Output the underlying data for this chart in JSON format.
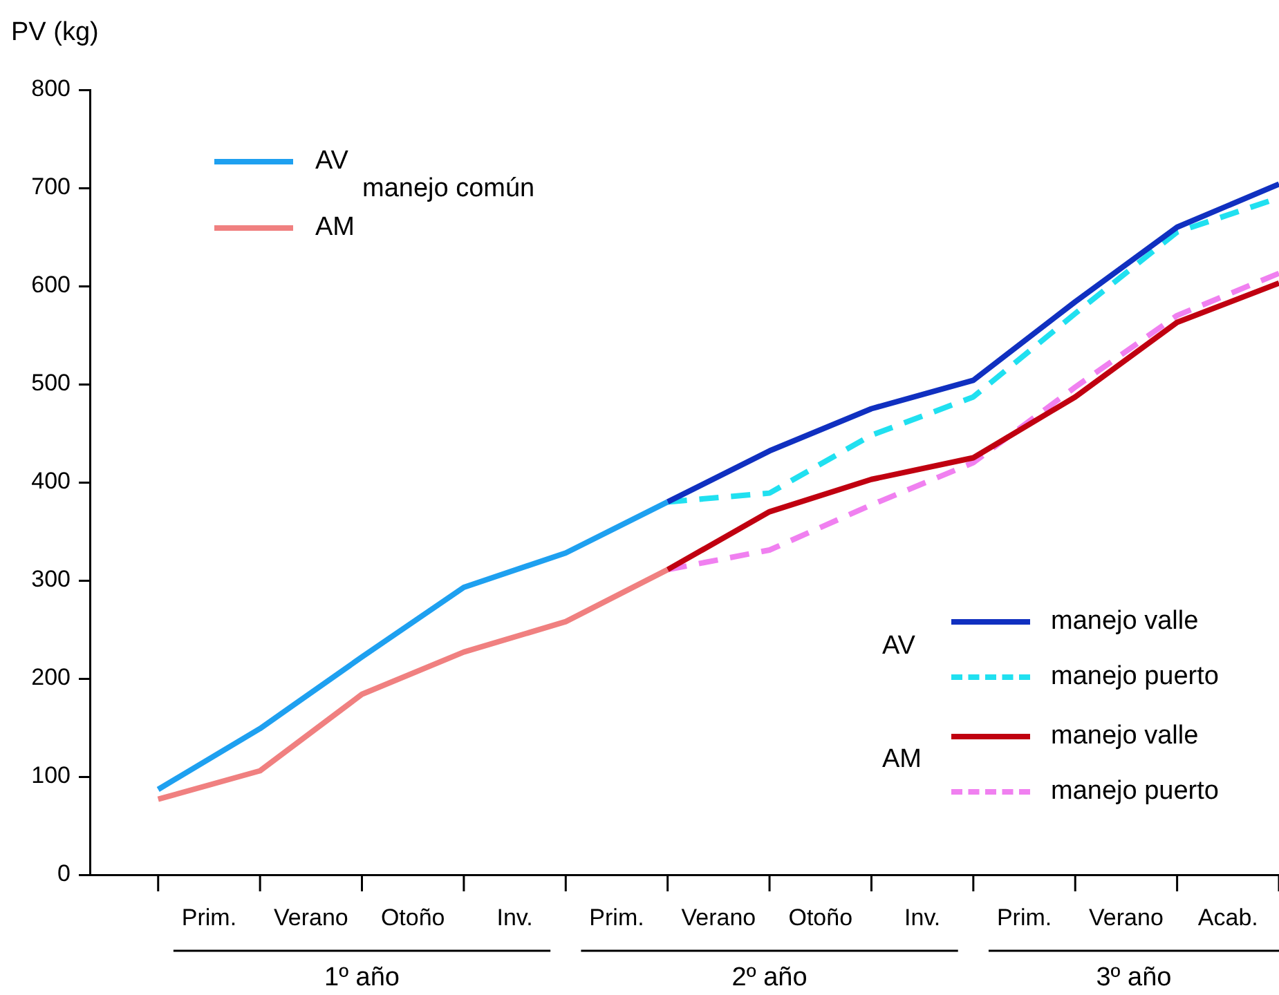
{
  "chart_data": {
    "type": "line",
    "ylabel": "PV (kg)",
    "marker": "none",
    "grid": false,
    "categories": [
      null,
      null,
      null,
      null,
      null,
      null,
      null,
      null,
      null,
      null,
      null,
      null
    ],
    "ylim": [
      0,
      800
    ],
    "yticks": [
      0,
      100,
      200,
      300,
      400,
      500,
      600,
      700,
      800
    ],
    "series": [
      {
        "name": "AV",
        "color": "#1ea0f0",
        "line_style": "solid",
        "values": [
          87,
          149,
          222,
          293,
          328,
          380,
          null,
          null,
          null,
          null,
          null,
          null
        ]
      },
      {
        "name": "AM",
        "color": "#f08080",
        "line_style": "solid",
        "values": [
          77,
          106,
          184,
          227,
          258,
          311,
          null,
          null,
          null,
          null,
          null,
          null
        ]
      },
      {
        "name": "manejo valle",
        "color": "#1030c0",
        "line_style": "solid",
        "values": [
          null,
          null,
          null,
          null,
          null,
          380,
          432,
          475,
          504,
          584,
          660,
          704
        ]
      },
      {
        "name": "manejo puerto",
        "color": "#20e0f0",
        "line_style": "dashed",
        "values": [
          null,
          null,
          null,
          null,
          null,
          380,
          389,
          448,
          487,
          572,
          655,
          690
        ]
      },
      {
        "name": "manejo valle",
        "color": "#c00010",
        "line_style": "solid",
        "values": [
          null,
          null,
          null,
          null,
          null,
          311,
          370,
          403,
          425,
          487,
          563,
          603
        ]
      },
      {
        "name": "manejo puerto",
        "color": "#f080f0",
        "line_style": "dashed",
        "values": [
          null,
          null,
          null,
          null,
          null,
          311,
          331,
          377,
          420,
          497,
          570,
          613
        ]
      }
    ],
    "legend": "top left",
    "annotations": [
      "manejo común",
      "AV",
      "AM",
      "Prim.",
      "Verano",
      "Otoño",
      "Inv.",
      "Prim.",
      "Verano",
      "Otoño",
      "Inv.",
      "Prim.",
      "Verano",
      "Acab.",
      "1º año",
      "2º año",
      "3º año"
    ]
  }
}
